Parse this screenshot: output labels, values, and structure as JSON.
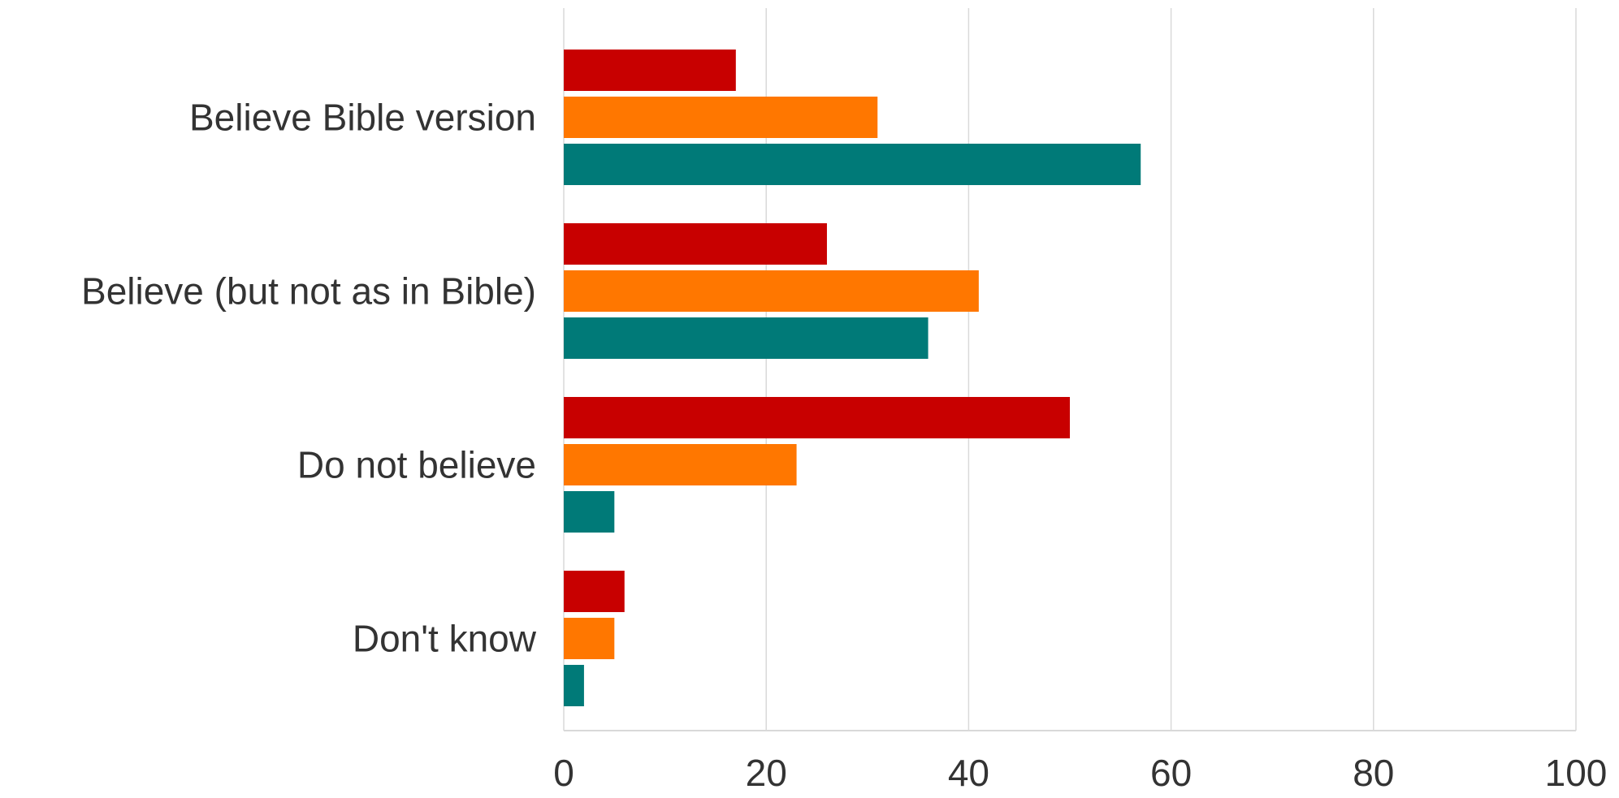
{
  "chart_data": {
    "type": "bar",
    "orientation": "horizontal",
    "categories": [
      "Believe Bible version",
      "Believe (but not as in Bible)",
      "Do not believe",
      "Don't know"
    ],
    "series": [
      {
        "color": "#c80000",
        "values": [
          17,
          26,
          50,
          6
        ]
      },
      {
        "color": "#ff7700",
        "values": [
          31,
          41,
          23,
          5
        ]
      },
      {
        "color": "#007a78",
        "values": [
          57,
          36,
          5,
          2
        ]
      }
    ],
    "xlim": [
      0,
      100
    ],
    "xticks": [
      "0",
      "20",
      "40",
      "60",
      "80",
      "100"
    ],
    "xlabel": "",
    "ylabel": "",
    "title": "",
    "grid": true,
    "legend": "none"
  }
}
